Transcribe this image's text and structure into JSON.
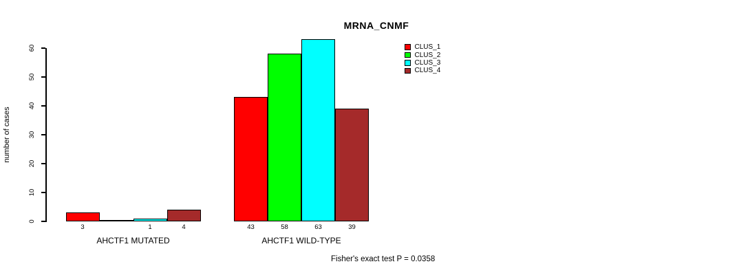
{
  "title": "MRNA_CNMF",
  "footer": "Fisher's exact test P = 0.0358",
  "chart_data": {
    "type": "bar",
    "title": "MRNA_CNMF",
    "xlabel": "",
    "ylabel": "number of cases",
    "categories": [
      "AHCTF1 MUTATED",
      "AHCTF1 WILD-TYPE"
    ],
    "series": [
      {
        "name": "CLUS_1",
        "color": "#ff0000",
        "values": [
          3,
          43
        ]
      },
      {
        "name": "CLUS_2",
        "color": "#00ff00",
        "values": [
          0,
          58
        ]
      },
      {
        "name": "CLUS_3",
        "color": "#00ffff",
        "values": [
          1,
          63
        ]
      },
      {
        "name": "CLUS_4",
        "color": "#a52a2a",
        "values": [
          4,
          39
        ]
      }
    ],
    "bar_value_labels": [
      [
        "3",
        "",
        "1",
        "4"
      ],
      [
        "43",
        "58",
        "63",
        "39"
      ]
    ],
    "yticks": [
      0,
      10,
      20,
      30,
      40,
      50,
      60
    ],
    "ylim": [
      0,
      63
    ],
    "grid": false,
    "legend_position": "top-right",
    "annotation": "Fisher's exact test P = 0.0358"
  }
}
